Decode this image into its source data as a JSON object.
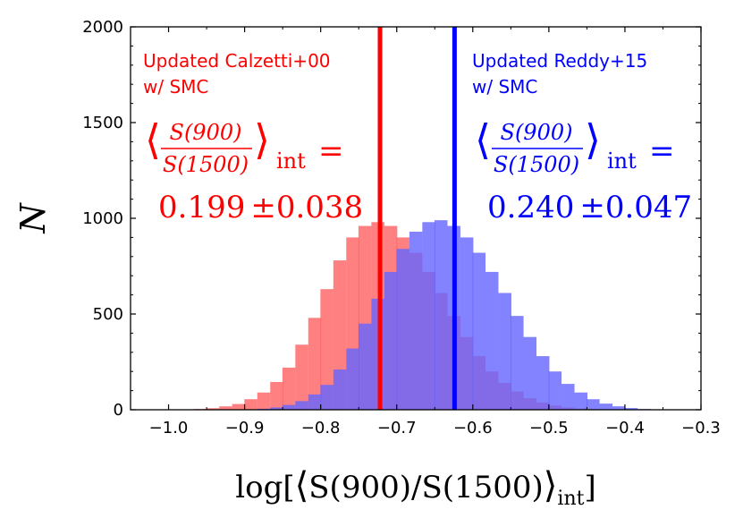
{
  "chart_data": {
    "type": "bar",
    "subtype": "overlapping histogram",
    "title": "",
    "xlabel": {
      "prefix": "log[",
      "open_bracket": "⟨",
      "body": "S(900)/S(1500)",
      "close_bracket": "⟩",
      "subscript": "int",
      "suffix": "]"
    },
    "ylabel": "N",
    "xlim": [
      -1.05,
      -0.3
    ],
    "ylim": [
      0,
      2000
    ],
    "xticks": [
      -1.0,
      -0.9,
      -0.8,
      -0.7,
      -0.6,
      -0.5,
      -0.4,
      -0.3
    ],
    "xtick_labels": [
      "−1.0",
      "−0.9",
      "−0.8",
      "−0.7",
      "−0.6",
      "−0.5",
      "−0.4",
      "−0.3"
    ],
    "yticks": [
      0,
      500,
      1000,
      1500,
      2000
    ],
    "ytick_labels": [
      "0",
      "500",
      "1000",
      "1500",
      "2000"
    ],
    "bin_width": 0.0167,
    "x": [
      -0.975,
      -0.958,
      -0.942,
      -0.925,
      -0.908,
      -0.892,
      -0.875,
      -0.858,
      -0.842,
      -0.825,
      -0.808,
      -0.792,
      -0.775,
      -0.758,
      -0.742,
      -0.725,
      -0.708,
      -0.692,
      -0.675,
      -0.658,
      -0.642,
      -0.625,
      -0.608,
      -0.592,
      -0.575,
      -0.558,
      -0.542,
      -0.525,
      -0.508,
      -0.492,
      -0.475,
      -0.458,
      -0.442,
      -0.425,
      -0.408,
      -0.392,
      -0.375,
      -0.358,
      -0.342
    ],
    "series": [
      {
        "name": "Updated Calzetti+00 w/ SMC",
        "color": "#ff6060",
        "opacity": 0.8,
        "values": [
          2,
          4,
          8,
          18,
          30,
          55,
          90,
          145,
          220,
          340,
          480,
          630,
          780,
          900,
          960,
          980,
          960,
          900,
          820,
          720,
          610,
          490,
          380,
          280,
          200,
          140,
          95,
          60,
          38,
          22,
          12,
          6,
          3,
          1,
          0,
          0,
          0,
          0,
          0
        ]
      },
      {
        "name": "Updated Reddy+15 w/ SMC",
        "color": "#6464ff",
        "opacity": 0.8,
        "values": [
          0,
          0,
          0,
          0,
          1,
          2,
          5,
          12,
          25,
          45,
          80,
          130,
          210,
          320,
          450,
          580,
          720,
          840,
          930,
          980,
          990,
          960,
          900,
          820,
          720,
          610,
          490,
          380,
          280,
          200,
          135,
          90,
          55,
          32,
          18,
          9,
          4,
          2,
          1
        ]
      }
    ],
    "vlines": [
      {
        "x": -0.722,
        "color": "#ff0000",
        "label": "Updated Calzetti+00 median"
      },
      {
        "x": -0.624,
        "color": "#0000ff",
        "label": "Updated Reddy+15 median"
      }
    ],
    "annotations": [
      {
        "color": "#ff0000",
        "line1": "Updated Calzetti+00",
        "line2": "w/ SMC",
        "numerator": "S(900)",
        "denominator": "S(1500)",
        "subscript": "int",
        "equals": "=",
        "value": "0.199",
        "pm": "±",
        "error": "0.038"
      },
      {
        "color": "#0000ff",
        "line1": "Updated Reddy+15",
        "line2": "w/ SMC",
        "numerator": "S(900)",
        "denominator": "S(1500)",
        "subscript": "int",
        "equals": "=",
        "value": "0.240",
        "pm": "±",
        "error": "0.047"
      }
    ],
    "grid": false,
    "legend": "none"
  }
}
